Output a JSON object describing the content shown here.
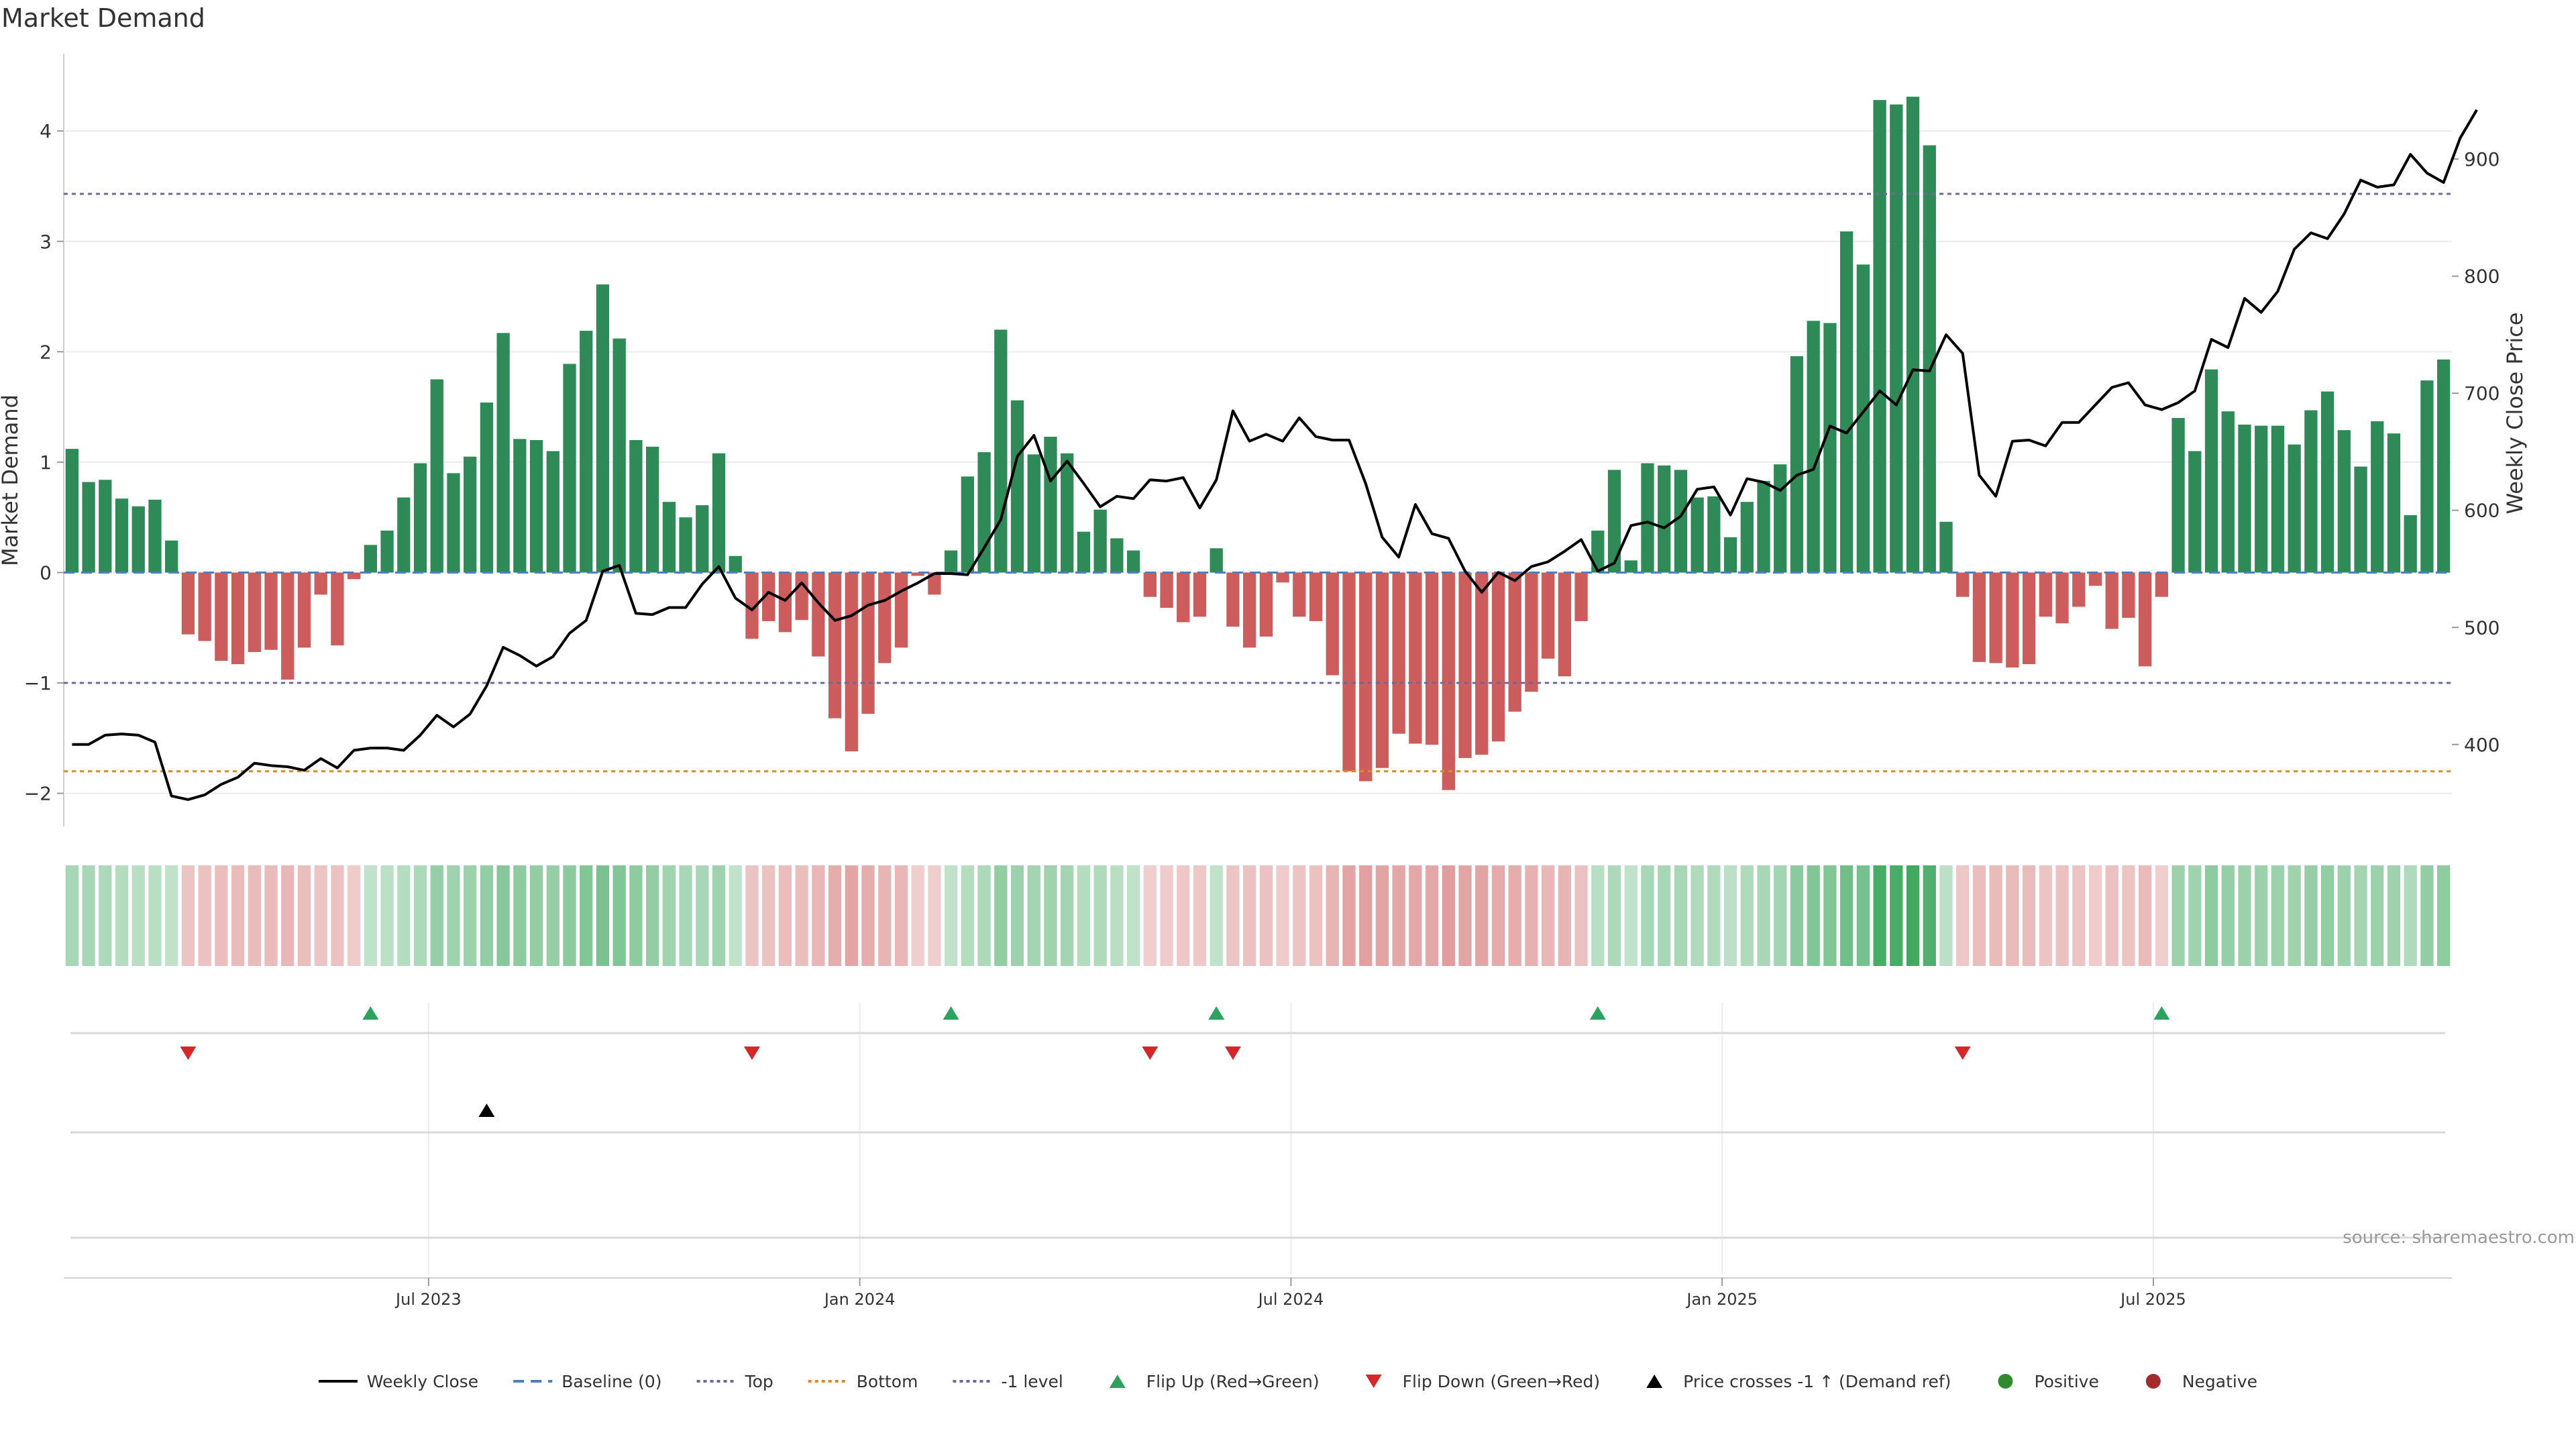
{
  "title": "Market Demand",
  "source": "source: sharemaestro.com",
  "colors": {
    "positive": "#2e8b57",
    "negative": "#cd5c5c",
    "price_line": "#000000",
    "top_line": "#6b6b9a",
    "bottom_line": "#e08a1e",
    "baseline": "#4a7fc1",
    "flip_up": "#2ca25f",
    "flip_down": "#d62728",
    "cross": "#000000",
    "pos_dot": "#2e8b2e",
    "neg_dot": "#a52a2a"
  },
  "chart_data": {
    "type": "bar",
    "ylabel_left": "Market Demand",
    "ylabel_right": "Weekly Close Price",
    "ylim_left": [
      -2.3,
      4.7
    ],
    "ylim_right": [
      330,
      990
    ],
    "left_ticks": [
      {
        "v": 4,
        "label": "4"
      },
      {
        "v": 3,
        "label": "3"
      },
      {
        "v": 2,
        "label": "2"
      },
      {
        "v": 1,
        "label": "1"
      },
      {
        "v": 0,
        "label": "0"
      },
      {
        "v": -1,
        "label": "−1"
      },
      {
        "v": -2,
        "label": "−2"
      }
    ],
    "right_ticks": [
      {
        "v": 900,
        "label": "900"
      },
      {
        "v": 800,
        "label": "800"
      },
      {
        "v": 700,
        "label": "700"
      },
      {
        "v": 600,
        "label": "600"
      },
      {
        "v": 500,
        "label": "500"
      },
      {
        "v": 400,
        "label": "400"
      }
    ],
    "x_ticks": [
      {
        "i": 22,
        "label": "Jul 2023"
      },
      {
        "i": 48,
        "label": "Jan 2024"
      },
      {
        "i": 74,
        "label": "Jul 2024"
      },
      {
        "i": 100,
        "label": "Jan 2025"
      },
      {
        "i": 126,
        "label": "Jul 2025"
      }
    ],
    "reference_lines": {
      "top": 3.43,
      "bottom": -1.8,
      "minus_one": -1,
      "baseline": 0
    },
    "demand": [
      1.12,
      0.82,
      0.84,
      0.67,
      0.6,
      0.66,
      0.29,
      -0.56,
      -0.62,
      -0.8,
      -0.83,
      -0.72,
      -0.7,
      -0.97,
      -0.68,
      -0.2,
      -0.66,
      -0.06,
      0.25,
      0.38,
      0.68,
      0.99,
      1.75,
      0.9,
      1.05,
      1.54,
      2.17,
      1.21,
      1.2,
      1.1,
      1.89,
      2.19,
      2.61,
      2.12,
      1.2,
      1.14,
      0.64,
      0.5,
      0.61,
      1.08,
      0.15,
      -0.6,
      -0.44,
      -0.54,
      -0.43,
      -0.76,
      -1.32,
      -1.62,
      -1.28,
      -0.82,
      -0.68,
      -0.03,
      -0.2,
      0.2,
      0.87,
      1.09,
      2.2,
      1.56,
      1.07,
      1.23,
      1.08,
      0.37,
      0.57,
      0.31,
      0.2,
      -0.22,
      -0.32,
      -0.45,
      -0.4,
      0.22,
      -0.49,
      -0.68,
      -0.58,
      -0.09,
      -0.4,
      -0.44,
      -0.93,
      -1.8,
      -1.89,
      -1.77,
      -1.46,
      -1.55,
      -1.56,
      -1.97,
      -1.68,
      -1.65,
      -1.53,
      -1.26,
      -1.08,
      -0.78,
      -0.94,
      -0.44,
      0.38,
      0.93,
      0.11,
      0.99,
      0.97,
      0.93,
      0.68,
      0.69,
      0.32,
      0.64,
      0.83,
      0.98,
      1.96,
      2.28,
      2.26,
      3.09,
      2.79,
      4.28,
      4.24,
      4.31,
      3.87,
      0.46,
      -0.22,
      -0.81,
      -0.82,
      -0.86,
      -0.83,
      -0.4,
      -0.46,
      -0.31,
      -0.12,
      -0.51,
      -0.41,
      -0.85,
      -0.22,
      1.4,
      1.1,
      1.84,
      1.46,
      1.34,
      1.33,
      1.33,
      1.16,
      1.47,
      1.64,
      1.29,
      0.96,
      1.37,
      1.26,
      0.52,
      1.74,
      1.93
    ],
    "price": [
      400,
      400,
      408,
      409,
      408,
      402,
      356,
      353,
      357,
      366,
      372,
      384,
      382,
      381,
      378,
      388,
      380,
      395,
      397,
      397,
      395,
      408,
      425,
      415,
      426,
      450,
      483,
      476,
      467,
      475,
      495,
      506,
      548,
      553,
      512,
      511,
      517,
      517,
      537,
      552,
      525,
      515,
      530,
      523,
      538,
      521,
      506,
      510,
      519,
      523,
      531,
      538,
      546,
      546,
      545,
      568,
      592,
      646,
      664,
      625,
      642,
      623,
      603,
      612,
      610,
      626,
      625,
      628,
      602,
      626,
      685,
      659,
      665,
      659,
      679,
      663,
      660,
      660,
      623,
      577,
      560,
      605,
      580,
      576,
      548,
      530,
      547,
      540,
      552,
      556,
      565,
      575,
      548,
      555,
      587,
      590,
      585,
      595,
      618,
      620,
      596,
      627,
      624,
      617,
      630,
      635,
      672,
      666,
      684,
      702,
      690,
      720,
      719,
      750,
      734,
      630,
      612,
      659,
      660,
      655,
      675,
      675,
      690,
      705,
      709,
      690,
      686,
      692,
      702,
      746,
      739,
      781,
      769,
      787,
      823,
      837,
      832,
      853,
      882,
      876,
      878,
      904,
      888,
      880,
      918,
      942
    ],
    "heat": [
      0.42,
      0.42,
      0.4,
      0.36,
      0.34,
      0.34,
      0.3,
      -0.36,
      -0.38,
      -0.4,
      -0.42,
      -0.42,
      -0.42,
      -0.44,
      -0.4,
      -0.36,
      -0.38,
      -0.32,
      0.3,
      0.32,
      0.36,
      0.4,
      0.5,
      0.46,
      0.48,
      0.52,
      0.58,
      0.54,
      0.52,
      0.5,
      0.56,
      0.6,
      0.64,
      0.6,
      0.54,
      0.52,
      0.46,
      0.42,
      0.42,
      0.46,
      0.3,
      -0.36,
      -0.38,
      -0.4,
      -0.4,
      -0.44,
      -0.5,
      -0.56,
      -0.5,
      -0.46,
      -0.44,
      -0.3,
      -0.3,
      0.3,
      0.36,
      0.4,
      0.52,
      0.48,
      0.44,
      0.46,
      0.44,
      0.36,
      0.38,
      0.34,
      0.3,
      -0.3,
      -0.32,
      -0.34,
      -0.34,
      0.3,
      -0.36,
      -0.38,
      -0.38,
      -0.32,
      -0.36,
      -0.38,
      -0.46,
      -0.56,
      -0.58,
      -0.56,
      -0.54,
      -0.54,
      -0.54,
      -0.6,
      -0.56,
      -0.56,
      -0.52,
      -0.5,
      -0.48,
      -0.44,
      -0.46,
      -0.38,
      0.34,
      0.4,
      0.3,
      0.42,
      0.42,
      0.42,
      0.38,
      0.38,
      0.32,
      0.38,
      0.42,
      0.44,
      0.56,
      0.6,
      0.6,
      0.68,
      0.66,
      0.88,
      0.88,
      0.9,
      0.84,
      0.32,
      -0.34,
      -0.4,
      -0.42,
      -0.42,
      -0.42,
      -0.36,
      -0.38,
      -0.36,
      -0.32,
      -0.38,
      -0.36,
      -0.42,
      -0.3,
      0.48,
      0.46,
      0.54,
      0.5,
      0.48,
      0.48,
      0.48,
      0.46,
      0.5,
      0.52,
      0.48,
      0.44,
      0.48,
      0.46,
      0.38,
      0.52,
      0.54
    ],
    "flip_up_idx": [
      18,
      53,
      69,
      92,
      126
    ],
    "flip_down_idx": [
      7,
      41,
      65,
      70,
      114
    ],
    "cross_idx": [
      25
    ],
    "legend": [
      {
        "key": "line",
        "label": "Weekly Close"
      },
      {
        "key": "baseline",
        "label": "Baseline (0)"
      },
      {
        "key": "top",
        "label": "Top"
      },
      {
        "key": "bottom",
        "label": "Bottom"
      },
      {
        "key": "minus1",
        "label": "-1 level"
      },
      {
        "key": "up",
        "label": "Flip Up (Red→Green)"
      },
      {
        "key": "down",
        "label": "Flip Down (Green→Red)"
      },
      {
        "key": "cross",
        "label": "Price crosses -1 ↑ (Demand ref)"
      },
      {
        "key": "pos",
        "label": "Positive"
      },
      {
        "key": "neg",
        "label": "Negative"
      }
    ]
  }
}
